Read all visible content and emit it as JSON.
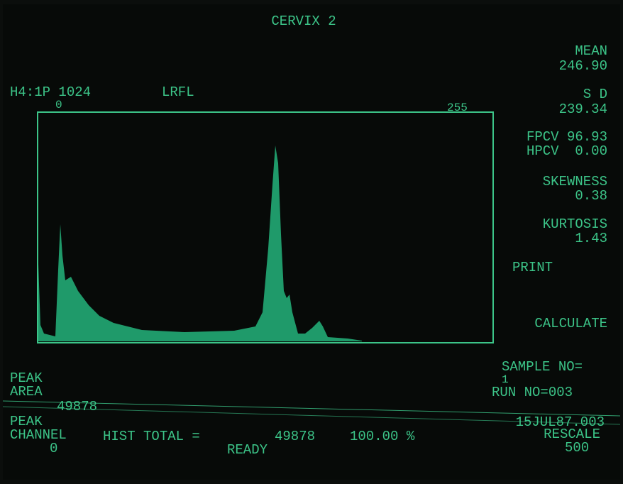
{
  "title": "CERVIX 2",
  "header": {
    "acquisition": "H4:1P 1024",
    "parameter": "LRFL"
  },
  "histogram": {
    "range_start": "0",
    "range_end": "255"
  },
  "stats": {
    "mean": {
      "label": "MEAN",
      "value": "246.90"
    },
    "sd": {
      "label": "S D",
      "value": "239.34"
    },
    "fpcv": "FPCV 96.93",
    "hpcv": "HPCV  0.00",
    "skewness": {
      "label": "SKEWNESS",
      "value": "0.38"
    },
    "kurtosis": {
      "label": "KURTOSIS",
      "value": "1.43"
    }
  },
  "menu": {
    "print": "PRINT",
    "calculate": "CALCULATE"
  },
  "sample": {
    "label": "SAMPLE NO=",
    "value": "1"
  },
  "run": "RUN NO=003",
  "date": "15JUL87.003",
  "rescale": {
    "label": "RESCALE",
    "value": "500"
  },
  "peak_area": {
    "label_1": "PEAK",
    "label_2": "AREA",
    "value": "49878"
  },
  "peak_channel": {
    "label_1": "PEAK",
    "label_2": "CHANNEL",
    "value": "0"
  },
  "hist_total": {
    "label": "HIST TOTAL =",
    "value": "49878",
    "percent": "100.00 %"
  },
  "status": "READY"
}
